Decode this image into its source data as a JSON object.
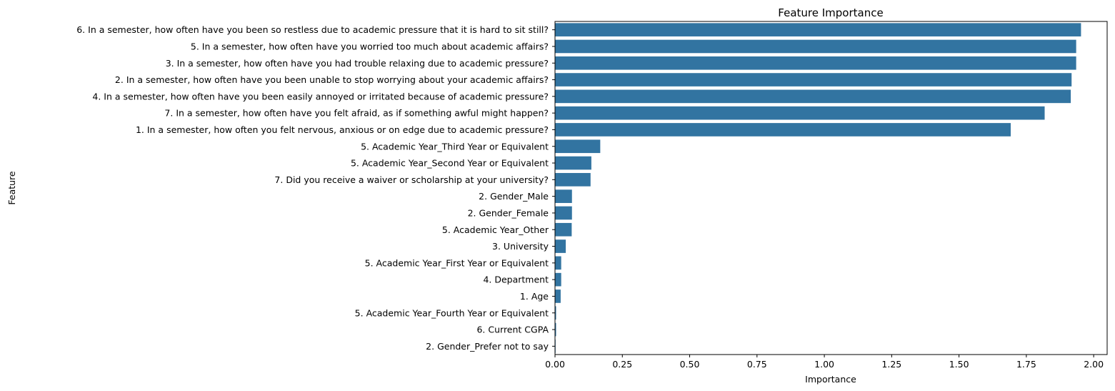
{
  "chart_data": {
    "type": "bar",
    "orientation": "horizontal",
    "title": "Feature Importance",
    "xlabel": "Importance",
    "ylabel": "Feature",
    "xlim": [
      0,
      2.05
    ],
    "xticks": [
      0.0,
      0.25,
      0.5,
      0.75,
      1.0,
      1.25,
      1.5,
      1.75,
      2.0
    ],
    "xtick_labels": [
      "0.00",
      "0.25",
      "0.50",
      "0.75",
      "1.00",
      "1.25",
      "1.50",
      "1.75",
      "2.00"
    ],
    "grid": false,
    "bar_color": "#3274a1",
    "categories": [
      "6. In a semester, how often have you been so restless due to academic pressure that it is hard to sit still? ",
      "5. In a semester, how often have you worried too much about academic affairs? ",
      "3. In a semester, how often have you had trouble relaxing due to academic pressure?",
      "2. In a semester, how often have you been unable to stop worrying about your academic affairs? ",
      "4. In a semester, how often have you been easily annoyed or irritated because of academic pressure?",
      "7. In a semester, how often have you felt afraid, as if something awful might happen?",
      "1. In a semester, how often you felt nervous, anxious or on edge due to academic pressure?",
      "5. Academic Year_Third Year or Equivalent",
      "5. Academic Year_Second Year or Equivalent",
      "7. Did you receive a waiver or scholarship at your university?",
      "2. Gender_Male",
      "2. Gender_Female",
      "5. Academic Year_Other",
      "3. University",
      "5. Academic Year_First Year or Equivalent",
      "4. Department",
      "1. Age",
      "5. Academic Year_Fourth Year or Equivalent",
      "6. Current CGPA",
      "2. Gender_Prefer not to say"
    ],
    "values": [
      1.953,
      1.935,
      1.935,
      1.918,
      1.915,
      1.818,
      1.692,
      0.168,
      0.135,
      0.132,
      0.063,
      0.063,
      0.062,
      0.04,
      0.023,
      0.023,
      0.021,
      0.004,
      0.004,
      0.001
    ]
  }
}
